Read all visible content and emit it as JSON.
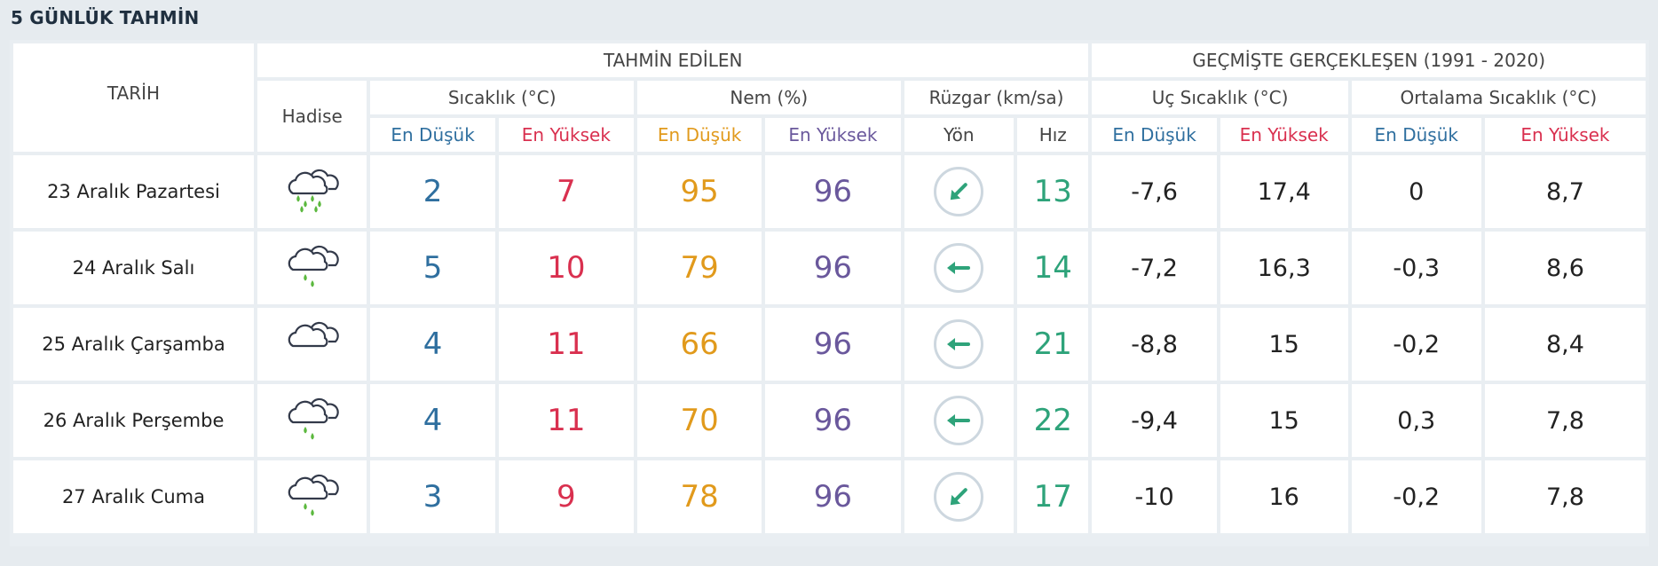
{
  "page_title": "5 GÜNLÜK TAHMİN",
  "header": {
    "tarih": "TARİH",
    "tahmin_edilen": "TAHMİN EDİLEN",
    "gecmiste": "GEÇMİŞTE GERÇEKLEŞEN (1991 - 2020)",
    "hadise": "Hadise",
    "sicaklik": "Sıcaklık (°C)",
    "nem": "Nem (%)",
    "ruzgar": "Rüzgar (km/sa)",
    "uc_sicaklik": "Uç Sıcaklık (°C)",
    "ortalama_sicaklik": "Ortalama Sıcaklık (°C)",
    "en_dusuk": "En Düşük",
    "en_yuksek": "En Yüksek",
    "yon": "Yön",
    "hiz": "Hız"
  },
  "colors": {
    "low": "#2f6f9f",
    "high": "#d9304f",
    "humidity_low": "#e19a1c",
    "humidity_high": "#6a589c",
    "wind_speed": "#2ea37a",
    "wind_arrow": "#2ea37a"
  },
  "rows": [
    {
      "date": "23 Aralık Pazartesi",
      "icon": "rain-cloud-icon",
      "temp_low": "2",
      "temp_high": "7",
      "hum_low": "95",
      "hum_high": "96",
      "wind_dir": "southwest",
      "wind_dir_deg": 225,
      "wind_speed": "13",
      "hist_min": "-7,6",
      "hist_max": "17,4",
      "avg_low": "0",
      "avg_high": "8,7"
    },
    {
      "date": "24 Aralık Salı",
      "icon": "light-rain-cloud-icon",
      "temp_low": "5",
      "temp_high": "10",
      "hum_low": "79",
      "hum_high": "96",
      "wind_dir": "west",
      "wind_dir_deg": 270,
      "wind_speed": "14",
      "hist_min": "-7,2",
      "hist_max": "16,3",
      "avg_low": "-0,3",
      "avg_high": "8,6"
    },
    {
      "date": "25 Aralık Çarşamba",
      "icon": "cloudy-icon",
      "temp_low": "4",
      "temp_high": "11",
      "hum_low": "66",
      "hum_high": "96",
      "wind_dir": "west",
      "wind_dir_deg": 270,
      "wind_speed": "21",
      "hist_min": "-8,8",
      "hist_max": "15",
      "avg_low": "-0,2",
      "avg_high": "8,4"
    },
    {
      "date": "26 Aralık Perşembe",
      "icon": "light-rain-cloud-icon",
      "temp_low": "4",
      "temp_high": "11",
      "hum_low": "70",
      "hum_high": "96",
      "wind_dir": "west",
      "wind_dir_deg": 270,
      "wind_speed": "22",
      "hist_min": "-9,4",
      "hist_max": "15",
      "avg_low": "0,3",
      "avg_high": "7,8"
    },
    {
      "date": "27 Aralık Cuma",
      "icon": "light-rain-cloud-icon",
      "temp_low": "3",
      "temp_high": "9",
      "hum_low": "78",
      "hum_high": "96",
      "wind_dir": "southwest",
      "wind_dir_deg": 225,
      "wind_speed": "17",
      "hist_min": "-10",
      "hist_max": "16",
      "avg_low": "-0,2",
      "avg_high": "7,8"
    }
  ]
}
